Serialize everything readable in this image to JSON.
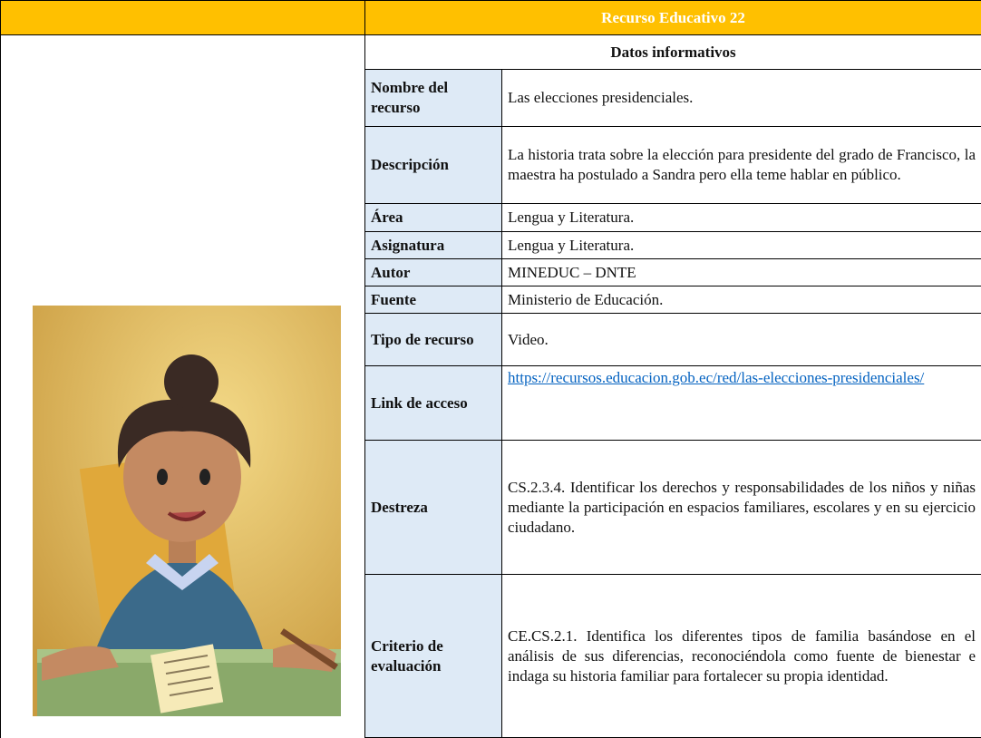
{
  "header": {
    "title": "Recurso Educativo 22"
  },
  "table": {
    "section": "Datos informativos",
    "rows": [
      {
        "label": "Nombre del recurso",
        "value": "Las elecciones presidenciales."
      },
      {
        "label": "Descripción",
        "value": "La historia trata sobre la elección para presidente del grado de Francisco, la maestra ha postulado a Sandra pero ella teme hablar en público."
      },
      {
        "label": "Área",
        "value": "Lengua y Literatura."
      },
      {
        "label": "Asignatura",
        "value": "Lengua y Literatura."
      },
      {
        "label": "Autor",
        "value": "MINEDUC – DNTE"
      },
      {
        "label": "Fuente",
        "value": "Ministerio de Educación."
      },
      {
        "label": "Tipo de recurso",
        "value": "Video."
      },
      {
        "label": "Link de acceso",
        "value": "https://recursos.educacion.gob.ec/red/las-elecciones-presidenciales/"
      },
      {
        "label": "Destreza",
        "value": "CS.2.3.4. Identificar los derechos y responsabilidades de los niños y niñas mediante la participación en espacios familiares, escolares y en su ejercicio ciudadano."
      },
      {
        "label": "Criterio de evaluación",
        "value": "CE.CS.2.1. Identifica los diferentes tipos de familia basándose en el análisis de sus diferencias, reconociéndola como fuente de bienestar e indaga su historia familiar para fortalecer su propia identidad."
      }
    ]
  }
}
